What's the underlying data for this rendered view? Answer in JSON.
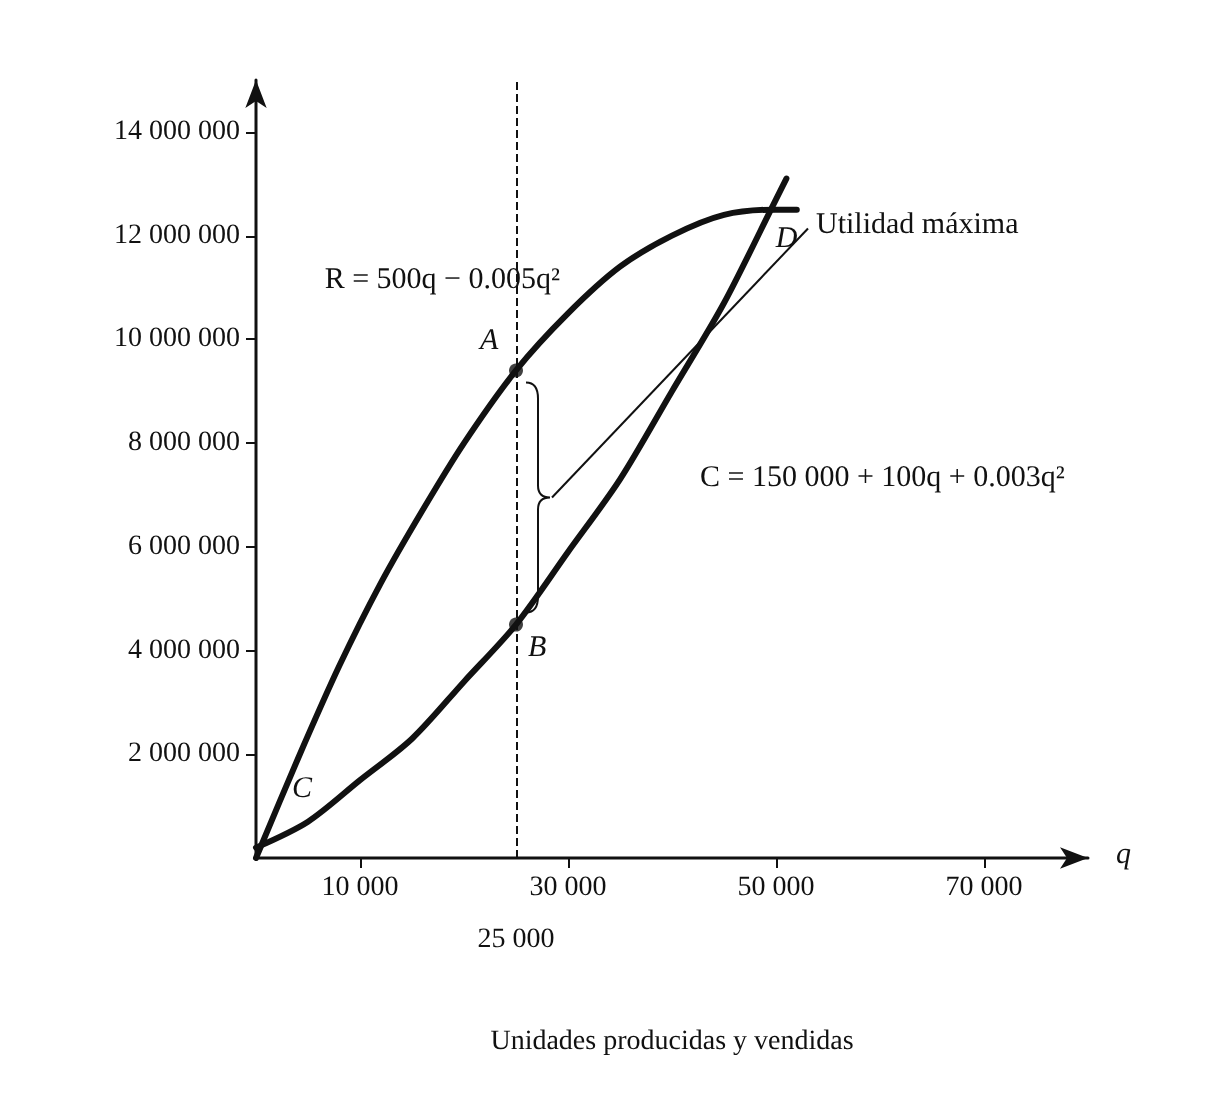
{
  "chart_data": {
    "type": "line",
    "xlabel": "Unidades producidas y vendidas",
    "xlim": [
      0,
      80000
    ],
    "ylim": [
      0,
      15000000
    ],
    "xticks": [
      {
        "value": 10000,
        "label": "10 000"
      },
      {
        "value": 30000,
        "label": "30 000"
      },
      {
        "value": 50000,
        "label": "50 000"
      },
      {
        "value": 70000,
        "label": "70 000"
      }
    ],
    "yticks": [
      {
        "value": 2000000,
        "label": "2 000 000"
      },
      {
        "value": 4000000,
        "label": "4 000 000"
      },
      {
        "value": 6000000,
        "label": "6 000 000"
      },
      {
        "value": 8000000,
        "label": "8 000 000"
      },
      {
        "value": 10000000,
        "label": "10 000 000"
      },
      {
        "value": 12000000,
        "label": "12 000 000"
      },
      {
        "value": 14000000,
        "label": "14 000 000"
      }
    ],
    "series": [
      {
        "name": "R = 500q − 0.005q²",
        "color": "#111111",
        "x": [
          0,
          4000,
          8000,
          12000,
          16000,
          20000,
          25000,
          30000,
          35000,
          40000,
          45000,
          50000,
          52000
        ],
        "values": [
          0,
          1900000,
          3700000,
          5300000,
          6700000,
          8000000,
          9400000,
          10500000,
          11400000,
          12000000,
          12400000,
          12500000,
          12500000
        ]
      },
      {
        "name": "C = 150 000 + 100q + 0.003q²",
        "color": "#111111",
        "x": [
          0,
          5000,
          10000,
          15000,
          20000,
          25000,
          30000,
          35000,
          40000,
          45000,
          50000,
          51000
        ],
        "values": [
          200000,
          700000,
          1500000,
          2300000,
          3400000,
          4500000,
          5900000,
          7300000,
          9000000,
          10700000,
          12700000,
          13100000
        ]
      },
      {
        "type": "scatter",
        "marker": "circle",
        "color": "#111111",
        "x": [
          25000,
          25000
        ],
        "values": [
          9400000,
          4500000
        ]
      }
    ],
    "ref_lines": [
      {
        "axis": "x",
        "value": 25000,
        "label": "25 000",
        "line_style": "dashed"
      }
    ],
    "annotations": [
      {
        "text": "A",
        "x": 25000,
        "y": 9400000
      },
      {
        "text": "B",
        "x": 25000,
        "y": 4500000
      },
      {
        "text": "C",
        "x": 5000,
        "y": 700000
      },
      {
        "text": "D",
        "x": 49600,
        "y": 12300000
      },
      "Utilidad máxima",
      "q"
    ],
    "grid": false,
    "legend": false,
    "marker": "none",
    "line_style": "solid"
  }
}
